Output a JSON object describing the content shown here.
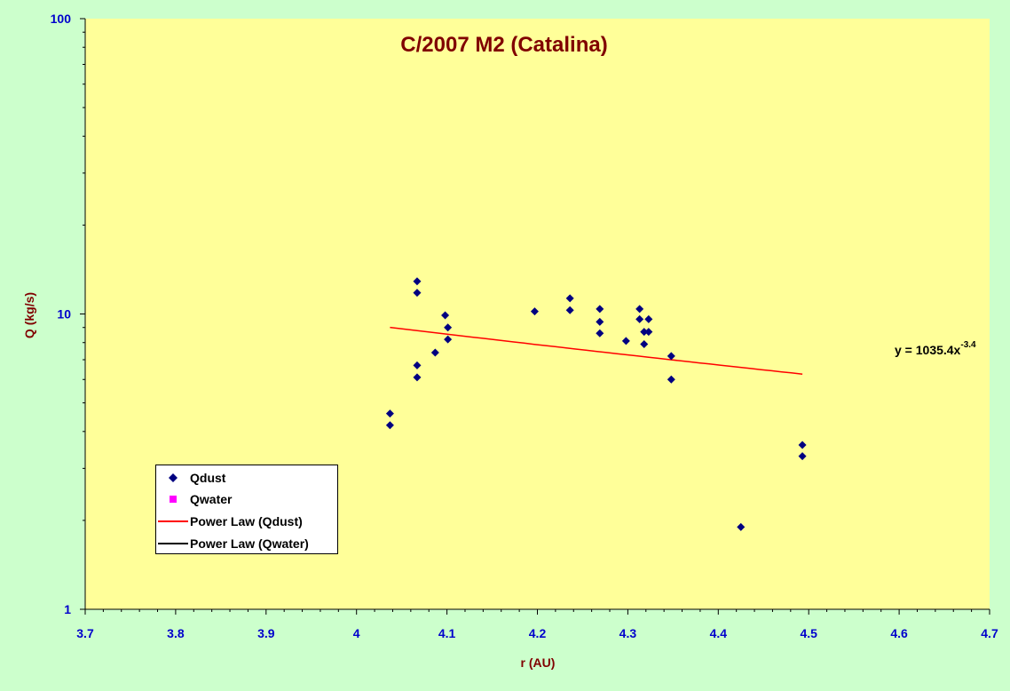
{
  "chart_data": {
    "type": "scatter",
    "title": "C/2007 M2 (Catalina)",
    "xlabel": "r (AU)",
    "ylabel": "Q (kg/s)",
    "xlim": [
      3.7,
      4.7
    ],
    "ylim": [
      1,
      100
    ],
    "yscale": "log",
    "x_ticks": [
      "3.7",
      "3.8",
      "3.9",
      "4",
      "4.1",
      "4.2",
      "4.3",
      "4.4",
      "4.5",
      "4.6",
      "4.7"
    ],
    "y_ticks": [
      "1",
      "10",
      "100"
    ],
    "grid": false,
    "legend_position": "bottom-left",
    "series": [
      {
        "name": "Qdust",
        "marker": "diamond",
        "color": "#000080",
        "points": [
          [
            4.037,
            4.6
          ],
          [
            4.037,
            4.2
          ],
          [
            4.067,
            12.9
          ],
          [
            4.067,
            11.8
          ],
          [
            4.067,
            6.7
          ],
          [
            4.067,
            6.1
          ],
          [
            4.087,
            7.4
          ],
          [
            4.098,
            9.9
          ],
          [
            4.101,
            9.0
          ],
          [
            4.101,
            8.2
          ],
          [
            4.197,
            10.2
          ],
          [
            4.236,
            11.3
          ],
          [
            4.236,
            10.3
          ],
          [
            4.269,
            10.4
          ],
          [
            4.269,
            9.4
          ],
          [
            4.269,
            8.6
          ],
          [
            4.298,
            8.1
          ],
          [
            4.313,
            10.4
          ],
          [
            4.313,
            9.6
          ],
          [
            4.318,
            8.7
          ],
          [
            4.318,
            7.9
          ],
          [
            4.323,
            9.6
          ],
          [
            4.323,
            8.7
          ],
          [
            4.348,
            7.2
          ],
          [
            4.348,
            6.0
          ],
          [
            4.425,
            1.9
          ],
          [
            4.493,
            3.6
          ],
          [
            4.493,
            3.3
          ]
        ]
      },
      {
        "name": "Qwater",
        "marker": "square",
        "color": "#ff00ff",
        "points": []
      }
    ],
    "trendlines": [
      {
        "name": "Power Law (Qdust)",
        "color": "#ff0000",
        "a": 1035.4,
        "b": -3.4,
        "x_range": [
          4.037,
          4.493
        ]
      },
      {
        "name": "Power Law (Qwater)",
        "color": "#000000"
      }
    ],
    "annotation": {
      "prefix": "y = 1035.4x",
      "exponent": "-3.4"
    }
  }
}
